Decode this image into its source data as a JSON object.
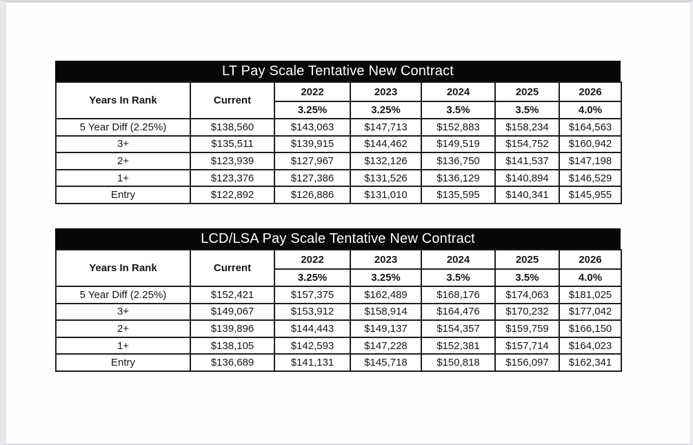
{
  "tables": [
    {
      "title": "LT Pay Scale Tentative New Contract",
      "header": {
        "years_in_rank": "Years In Rank",
        "current": "Current",
        "years": [
          "2022",
          "2023",
          "2024",
          "2025",
          "2026"
        ],
        "raises": [
          "3.25%",
          "3.25%",
          "3.5%",
          "3.5%",
          "4.0%"
        ]
      },
      "rows": [
        {
          "label": "5 Year Diff (2.25%)",
          "values": [
            "$138,560",
            "$143,063",
            "$147,713",
            "$152,883",
            "$158,234",
            "$164,563"
          ]
        },
        {
          "label": "3+",
          "values": [
            "$135,511",
            "$139,915",
            "$144,462",
            "$149,519",
            "$154,752",
            "$160,942"
          ]
        },
        {
          "label": "2+",
          "values": [
            "$123,939",
            "$127,967",
            "$132,126",
            "$136,750",
            "$141,537",
            "$147,198"
          ]
        },
        {
          "label": "1+",
          "values": [
            "$123,376",
            "$127,386",
            "$131,526",
            "$136,129",
            "$140,894",
            "$146,529"
          ]
        },
        {
          "label": "Entry",
          "values": [
            "$122,892",
            "$126,886",
            "$131,010",
            "$135,595",
            "$140,341",
            "$145,955"
          ]
        }
      ]
    },
    {
      "title": "LCD/LSA Pay Scale Tentative New Contract",
      "header": {
        "years_in_rank": "Years In Rank",
        "current": "Current",
        "years": [
          "2022",
          "2023",
          "2024",
          "2025",
          "2026"
        ],
        "raises": [
          "3.25%",
          "3.25%",
          "3.5%",
          "3.5%",
          "4.0%"
        ]
      },
      "rows": [
        {
          "label": "5 Year Diff (2.25%)",
          "values": [
            "$152,421",
            "$157,375",
            "$162,489",
            "$168,176",
            "$174,063",
            "$181,025"
          ]
        },
        {
          "label": "3+",
          "values": [
            "$149,067",
            "$153,912",
            "$158,914",
            "$164,476",
            "$170,232",
            "$177,042"
          ]
        },
        {
          "label": "2+",
          "values": [
            "$139,896",
            "$144,443",
            "$149,137",
            "$154,357",
            "$159,759",
            "$166,150"
          ]
        },
        {
          "label": "1+",
          "values": [
            "$138,105",
            "$142,593",
            "$147,228",
            "$152,381",
            "$157,714",
            "$164,023"
          ]
        },
        {
          "label": "Entry",
          "values": [
            "$136,689",
            "$141,131",
            "$145,718",
            "$150,818",
            "$156,097",
            "$162,341"
          ]
        }
      ]
    }
  ],
  "colors": {
    "title_bar_bg": "#070707",
    "title_text": "#ffffff",
    "table_border": "#1d1d1d",
    "body_text": "#151515",
    "page_bg": "#ffffff",
    "scan_edge": "#e7e7ea"
  }
}
